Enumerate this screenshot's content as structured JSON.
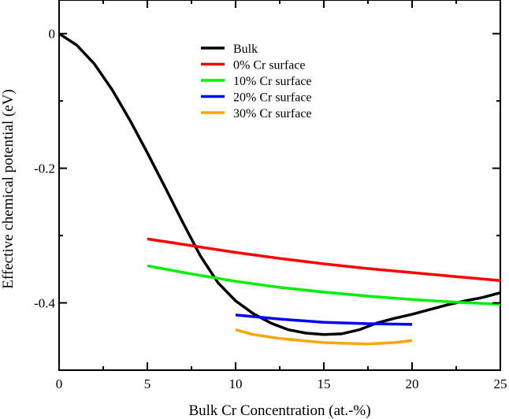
{
  "chart_data": {
    "type": "line",
    "title": "",
    "xlabel": "Bulk Cr Concentration (at.-%)",
    "ylabel": "Effective chemical potential (eV)",
    "xlim": [
      0,
      25
    ],
    "ylim": [
      -0.5,
      0.05
    ],
    "x_ticks": [
      0,
      5,
      10,
      15,
      20,
      25
    ],
    "y_ticks": [
      0,
      -0.2,
      -0.4
    ],
    "x_tick_labels": [
      "0",
      "5",
      "10",
      "15",
      "20",
      "25"
    ],
    "y_tick_labels": [
      "0",
      "-0.2",
      "-0.4"
    ],
    "grid": false,
    "legend_placement": "top-center",
    "series": [
      {
        "name": "Bulk",
        "color": "#000000",
        "x": [
          0,
          1,
          2,
          3,
          4,
          5,
          6,
          7,
          8,
          9,
          10,
          11,
          12,
          13,
          14,
          15,
          16,
          17,
          18,
          19,
          20,
          21,
          22,
          23,
          24,
          25
        ],
        "y": [
          0,
          -0.017,
          -0.045,
          -0.083,
          -0.128,
          -0.177,
          -0.228,
          -0.28,
          -0.33,
          -0.37,
          -0.397,
          -0.416,
          -0.43,
          -0.44,
          -0.445,
          -0.447,
          -0.446,
          -0.44,
          -0.43,
          -0.423,
          -0.417,
          -0.41,
          -0.403,
          -0.397,
          -0.392,
          -0.385
        ]
      },
      {
        "name": " 0% Cr surface",
        "color": "#ff0000",
        "x": [
          5,
          7.5,
          10,
          12.5,
          15,
          17.5,
          20,
          22.5,
          25
        ],
        "y": [
          -0.305,
          -0.315,
          -0.325,
          -0.334,
          -0.342,
          -0.349,
          -0.355,
          -0.361,
          -0.367
        ]
      },
      {
        "name": "10% Cr surface",
        "color": "#00ee00",
        "x": [
          5,
          7.5,
          10,
          12.5,
          15,
          17.5,
          20,
          22.5,
          25
        ],
        "y": [
          -0.345,
          -0.357,
          -0.368,
          -0.377,
          -0.384,
          -0.39,
          -0.395,
          -0.399,
          -0.402
        ]
      },
      {
        "name": "20% Cr surface",
        "color": "#0000ff",
        "x": [
          10,
          12.5,
          15,
          17.5,
          20
        ],
        "y": [
          -0.418,
          -0.424,
          -0.429,
          -0.431,
          -0.432
        ]
      },
      {
        "name": "30% Cr surface",
        "color": "#ffa500",
        "x": [
          10,
          11,
          12.5,
          15,
          17.5,
          19,
          20
        ],
        "y": [
          -0.44,
          -0.447,
          -0.453,
          -0.459,
          -0.461,
          -0.459,
          -0.456
        ]
      }
    ]
  }
}
